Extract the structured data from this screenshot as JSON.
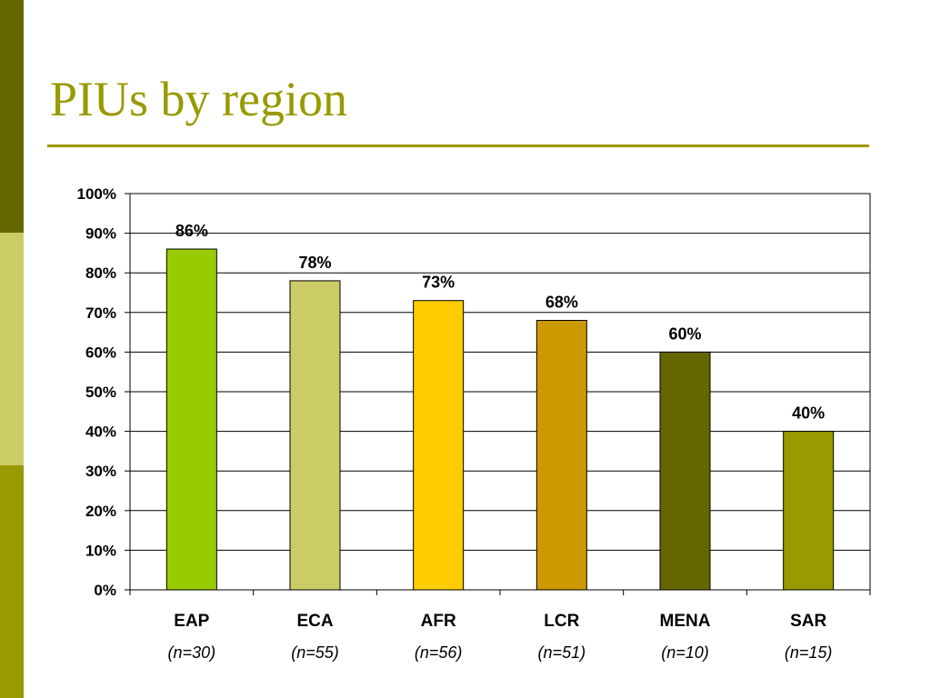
{
  "slide": {
    "title": "PIUs by region",
    "colors": {
      "title": "#999900",
      "rule": "#999900",
      "band_top": "#666600",
      "band_mid": "#CCCC66",
      "band_bot": "#999900"
    }
  },
  "chart_data": {
    "type": "bar",
    "title": "",
    "xlabel": "",
    "ylabel": "",
    "ylim": [
      0,
      100
    ],
    "y_ticks": [
      0,
      10,
      20,
      30,
      40,
      50,
      60,
      70,
      80,
      90,
      100
    ],
    "y_tick_labels": [
      "0%",
      "10%",
      "20%",
      "30%",
      "40%",
      "50%",
      "60%",
      "70%",
      "80%",
      "90%",
      "100%"
    ],
    "grid": true,
    "categories": [
      "EAP",
      "ECA",
      "AFR",
      "LCR",
      "MENA",
      "SAR"
    ],
    "sublabels": [
      "(n=30)",
      "(n=55)",
      "(n=56)",
      "(n=51)",
      "(n=10)",
      "(n=15)"
    ],
    "values": [
      86,
      78,
      73,
      68,
      60,
      40
    ],
    "data_labels": [
      "86%",
      "78%",
      "73%",
      "68%",
      "60%",
      "40%"
    ],
    "colors": [
      "#99CC00",
      "#CCCC66",
      "#FFCC00",
      "#CC9900",
      "#666600",
      "#999900"
    ]
  }
}
